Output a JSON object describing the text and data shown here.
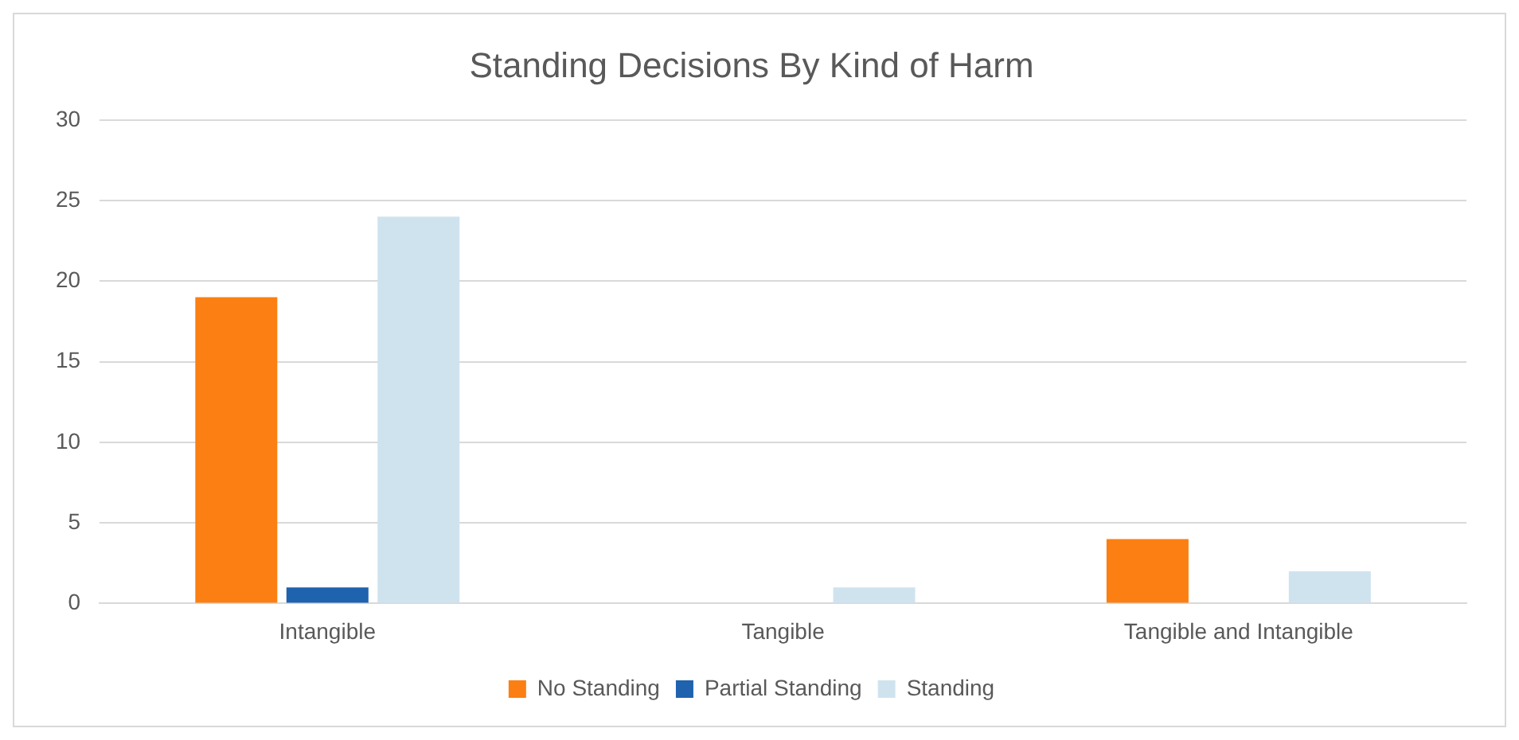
{
  "chart_data": {
    "type": "bar",
    "title": "Standing Decisions By Kind of Harm",
    "categories": [
      "Intangible",
      "Tangible",
      "Tangible and Intangible"
    ],
    "series": [
      {
        "name": "No Standing",
        "color": "#fb7f12",
        "values": [
          19,
          null,
          4
        ]
      },
      {
        "name": "Partial Standing",
        "color": "#1f62ae",
        "values": [
          1,
          null,
          null
        ]
      },
      {
        "name": "Standing",
        "color": "#cfe3ef",
        "values": [
          24,
          1,
          2
        ]
      }
    ],
    "ylim": [
      0,
      30
    ],
    "yticks": [
      0,
      5,
      10,
      15,
      20,
      25,
      30
    ],
    "grid": "y",
    "legend": "bottom"
  }
}
